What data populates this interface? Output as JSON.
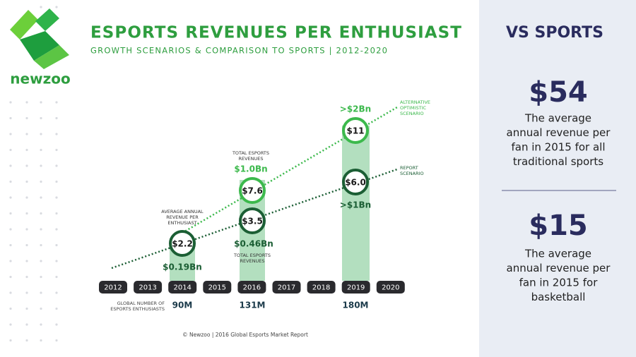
{
  "logo": "newzoo",
  "header": {
    "title": "ESPORTS REVENUES PER ENTHUSIAST",
    "subtitle": "GROWTH SCENARIOS & COMPARISON TO SPORTS | 2012-2020"
  },
  "years": [
    "2012",
    "2013",
    "2014",
    "2015",
    "2016",
    "2017",
    "2018",
    "2019",
    "2020"
  ],
  "enthusiasts": {
    "label": [
      "GLOBAL NUMBER OF",
      "ESPORTS ENTHUSIASTS"
    ],
    "values": [
      "90M",
      "131M",
      "180M"
    ]
  },
  "scenarios": {
    "optimistic": [
      "ALTERNATIVE",
      "OPTIMISTIC",
      "SCENARIO"
    ],
    "report": [
      "REPORT",
      "SCENARIO"
    ]
  },
  "points": {
    "y2014": {
      "per_fan": "$2.2",
      "revenue": "$0.19Bn",
      "note": [
        "AVERAGE ANNUAL",
        "REVENUE PER",
        "ENTHUSIAST"
      ]
    },
    "y2016": {
      "report_per_fan": "$3.5",
      "optimistic_per_fan": "$7.6",
      "report_revenue": "$0.46Bn",
      "optimistic_revenue": "$1.0Bn",
      "report_note": [
        "TOTAL ESPORTS",
        "REVENUES"
      ],
      "optimistic_note": [
        "TOTAL ESPORTS",
        "REVENUES"
      ]
    },
    "y2019": {
      "report_per_fan": "$6.0",
      "optimistic_per_fan": "$11",
      "report_revenue": ">$1Bn",
      "optimistic_revenue": ">$2Bn"
    }
  },
  "footer": "© Newzoo | 2016 Global Esports Market Report",
  "sidebar": {
    "title": "VS SPORTS",
    "items": [
      {
        "value": "$54",
        "text": [
          "The average",
          "annual revenue per",
          "fan in 2015 for all",
          "traditional sports"
        ]
      },
      {
        "value": "$15",
        "text": [
          "The average",
          "annual revenue per",
          "fan in 2015 for",
          "basketball"
        ]
      }
    ]
  }
}
